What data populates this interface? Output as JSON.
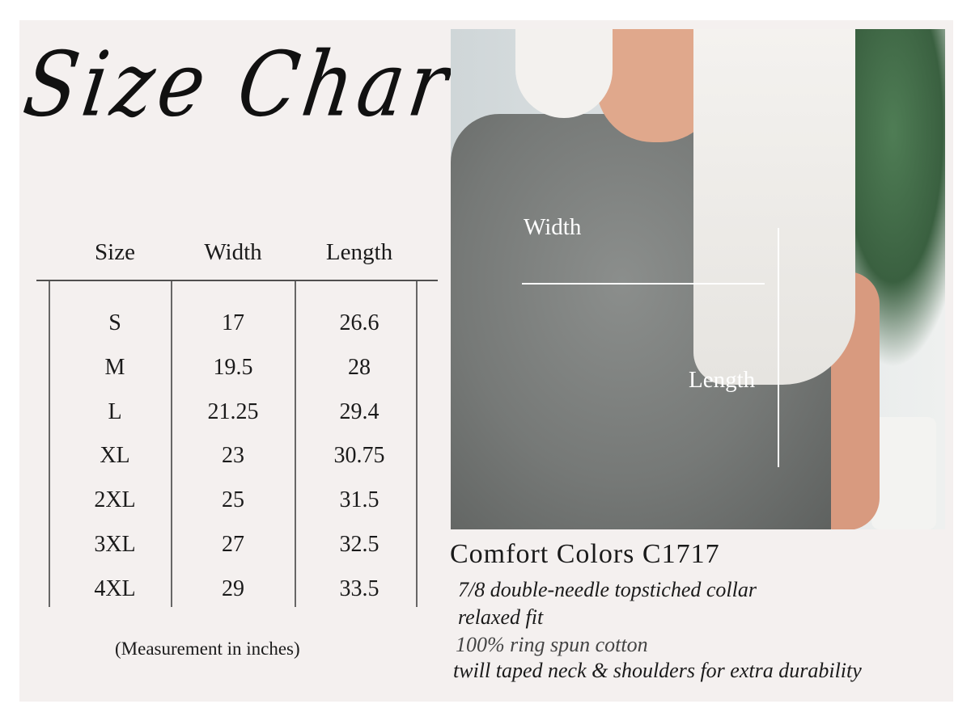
{
  "title": "Size Chart",
  "table": {
    "headers": [
      "Size",
      "Width",
      "Length"
    ],
    "rows": [
      [
        "S",
        "17",
        "26.6"
      ],
      [
        "M",
        "19.5",
        "28"
      ],
      [
        "L",
        "21.25",
        "29.4"
      ],
      [
        "XL",
        "23",
        "30.75"
      ],
      [
        "2XL",
        "25",
        "31.5"
      ],
      [
        "3XL",
        "27",
        "32.5"
      ],
      [
        "4XL",
        "29",
        "33.5"
      ]
    ],
    "note": "(Measurement in inches)"
  },
  "photo": {
    "width_label": "Width",
    "length_label": "Length"
  },
  "product": {
    "name": "Comfort Colors C1717",
    "features": [
      "7/8 double-needle topstiched collar",
      "relaxed fit",
      "100% ring spun cotton",
      "twill taped neck & shoulders for extra durability"
    ]
  },
  "colors": {
    "panel": "#f4f0ef",
    "text": "#1a1a1a",
    "shirt": "#7a7d7b"
  }
}
